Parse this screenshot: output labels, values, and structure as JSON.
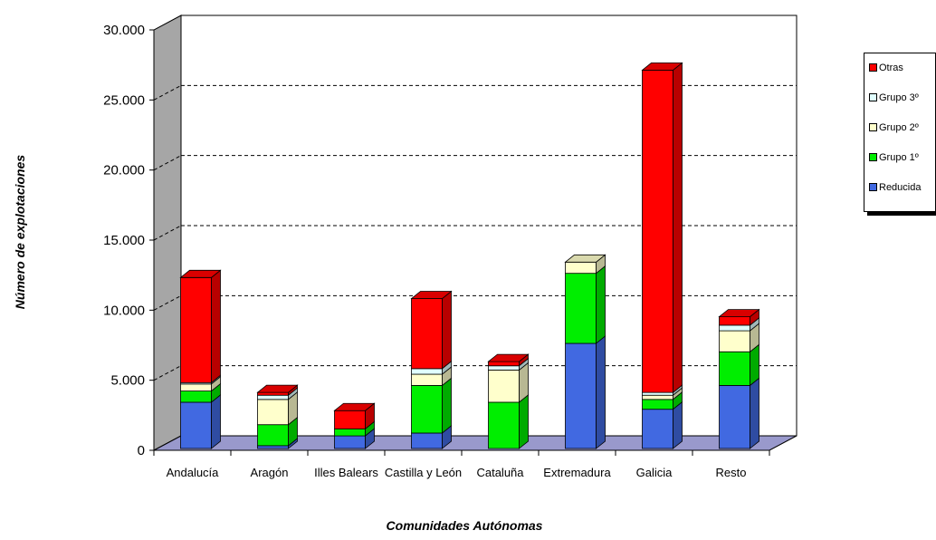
{
  "chart_data": {
    "type": "bar",
    "stacked": true,
    "xlabel": "Comunidades Autónomas",
    "ylabel": "Número de explotaciones",
    "ylim": [
      0,
      30000
    ],
    "yticks": [
      "0",
      "5.000",
      "10.000",
      "15.000",
      "20.000",
      "25.000",
      "30.000"
    ],
    "ytick_values": [
      0,
      5000,
      10000,
      15000,
      20000,
      25000,
      30000
    ],
    "grid": true,
    "legend_position": "right",
    "categories": [
      "Andalucía",
      "Aragón",
      "Illes Balears",
      "Castilla y León",
      "Cataluña",
      "Extremadura",
      "Galicia",
      "Resto"
    ],
    "series": [
      {
        "name": "Reducida",
        "color": "#4169E1",
        "values": [
          3300,
          200,
          900,
          1100,
          0,
          7500,
          2800,
          4500
        ]
      },
      {
        "name": "Grupo 1º",
        "color": "#00EE00",
        "values": [
          800,
          1500,
          500,
          3400,
          3300,
          5000,
          700,
          2400
        ]
      },
      {
        "name": "Grupo 2º",
        "color": "#FFFFCC",
        "values": [
          500,
          1800,
          0,
          800,
          2300,
          800,
          300,
          1500
        ]
      },
      {
        "name": "Grupo 3º",
        "color": "#E0FFFF",
        "values": [
          100,
          300,
          0,
          400,
          300,
          0,
          200,
          400
        ]
      },
      {
        "name": "Otras",
        "color": "#FF0000",
        "values": [
          7500,
          200,
          1300,
          5000,
          300,
          0,
          23000,
          600
        ]
      }
    ]
  }
}
